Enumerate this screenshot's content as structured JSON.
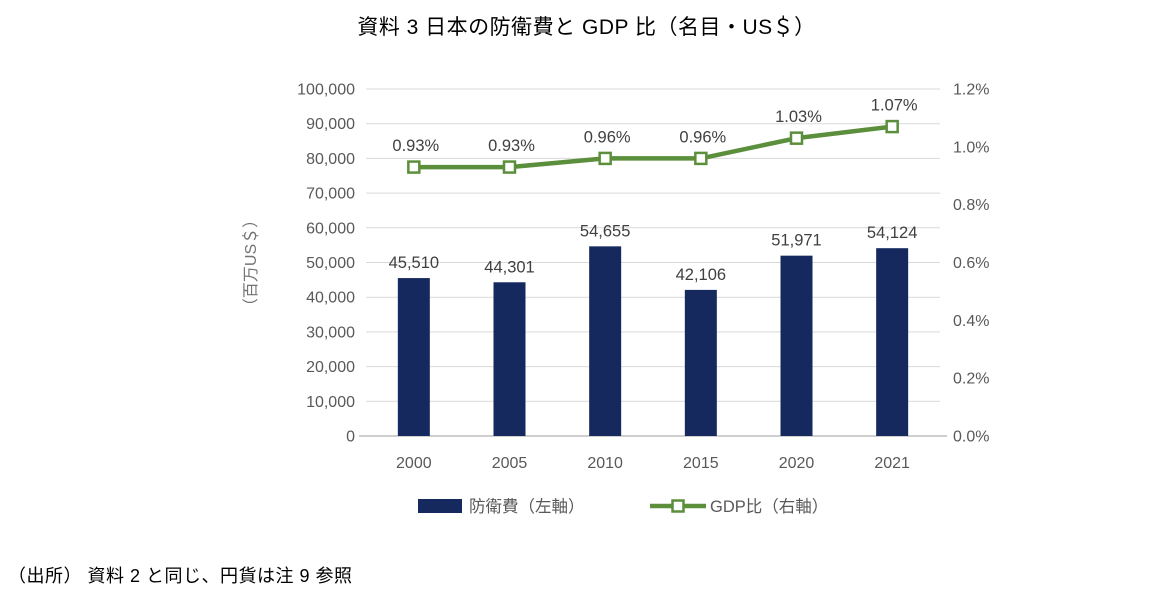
{
  "title": "資料 3  日本の防衛費と GDP 比（名目・US＄）",
  "source_note": "（出所） 資料 2 と同じ、円貨は注 9 参照",
  "colors": {
    "bar": "#15295f",
    "line": "#5b8f3b",
    "gridline": "#d9d9d9",
    "axis_line": "#bfbfbf",
    "tick_text": "#595959",
    "data_label_text": "#404040",
    "axis_title_text": "#737373"
  },
  "chart_data": {
    "type": "bar",
    "subtype": "bar-line-combo",
    "title": "資料 3  日本の防衛費と GDP 比（名目・US＄）",
    "categories": [
      "2000",
      "2005",
      "2010",
      "2015",
      "2020",
      "2021"
    ],
    "series": [
      {
        "name": "防衛費（左軸）",
        "type": "bar",
        "axis": "left",
        "values": [
          45510,
          44301,
          54655,
          42106,
          51971,
          54124
        ],
        "labels": [
          "45,510",
          "44,301",
          "54,655",
          "42,106",
          "51,971",
          "54,124"
        ]
      },
      {
        "name": "GDP比（右軸）",
        "type": "line",
        "axis": "right",
        "values": [
          0.93,
          0.93,
          0.96,
          0.96,
          1.03,
          1.07
        ],
        "labels": [
          "0.93%",
          "0.93%",
          "0.96%",
          "0.96%",
          "1.03%",
          "1.07%"
        ]
      }
    ],
    "left_axis": {
      "title": "（百万US＄）",
      "min": 0,
      "max": 100000,
      "step": 10000,
      "tick_labels": [
        "0",
        "10,000",
        "20,000",
        "30,000",
        "40,000",
        "50,000",
        "60,000",
        "70,000",
        "80,000",
        "90,000",
        "100,000"
      ]
    },
    "right_axis": {
      "min": 0,
      "max": 1.2,
      "step": 0.2,
      "tick_labels": [
        "0.0%",
        "0.2%",
        "0.4%",
        "0.6%",
        "0.8%",
        "1.0%",
        "1.2%"
      ]
    },
    "grid": true,
    "legend_position": "bottom",
    "legend": [
      "防衛費（左軸）",
      "GDP比（右軸）"
    ]
  }
}
